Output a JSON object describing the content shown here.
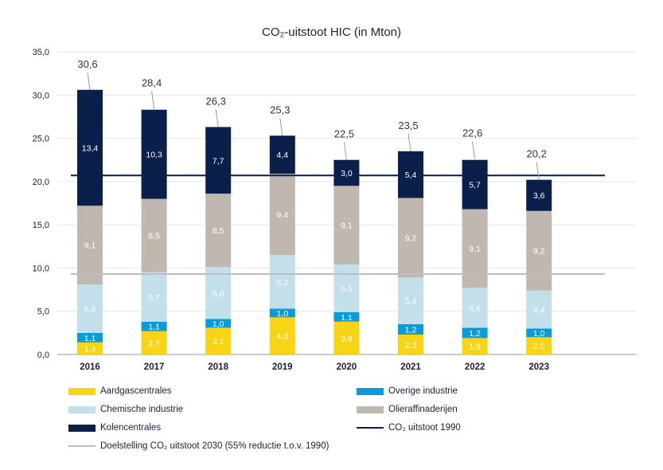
{
  "title": "CO₂-uitstoot HIC (in Mton)",
  "chart_data": {
    "type": "bar",
    "stacked": true,
    "title": "CO₂-uitstoot HIC (in Mton)",
    "categories": [
      "2016",
      "2017",
      "2018",
      "2019",
      "2020",
      "2021",
      "2022",
      "2023"
    ],
    "ylim": [
      0,
      35
    ],
    "yticks": [
      "0,0",
      "5,0",
      "10,0",
      "15,0",
      "20,0",
      "25,0",
      "30,0",
      "35,0"
    ],
    "grid": true,
    "legend_position": "bottom",
    "series": [
      {
        "name": "Aardgascentrales",
        "color": "#f7d416",
        "label_color": "#ffffff",
        "values": [
          1.4,
          2.7,
          3.1,
          4.3,
          3.8,
          2.3,
          1.9,
          2.0
        ],
        "labels": [
          "1,4",
          "2,7",
          "3,1",
          "4,3",
          "3,8",
          "2,3",
          "1,9",
          "2,0"
        ]
      },
      {
        "name": "Overige industrie",
        "color": "#0b9bd8",
        "label_color": "#ffffff",
        "values": [
          1.1,
          1.1,
          1.0,
          1.0,
          1.1,
          1.2,
          1.2,
          1.0
        ],
        "labels": [
          "1,1",
          "1,1",
          "1,0",
          "1,0",
          "1,1",
          "1,2",
          "1,2",
          "1,0"
        ]
      },
      {
        "name": "Chemische industrie",
        "color": "#c3dfea",
        "label_color": "#ffffff",
        "values": [
          5.6,
          5.7,
          6.0,
          6.2,
          5.5,
          5.4,
          4.6,
          4.4
        ],
        "labels": [
          "5,6",
          "5,7",
          "6,0",
          "6,2",
          "5,5",
          "5,4",
          "4,6",
          "4,4"
        ]
      },
      {
        "name": "Olieraffinaderijen",
        "color": "#c0b7b0",
        "label_color": "#ffffff",
        "values": [
          9.1,
          8.5,
          8.5,
          9.4,
          9.1,
          9.2,
          9.1,
          9.2
        ],
        "labels": [
          "9,1",
          "8,5",
          "8,5",
          "9,4",
          "9,1",
          "9,2",
          "9,1",
          "9,2"
        ]
      },
      {
        "name": "Kolencentrales",
        "color": "#0b1f4b",
        "label_color": "#ffffff",
        "values": [
          13.4,
          10.3,
          7.7,
          4.4,
          3.0,
          5.4,
          5.7,
          3.6
        ],
        "labels": [
          "13,4",
          "10,3",
          "7,7",
          "4,4",
          "3,0",
          "5,4",
          "5,7",
          "3,6"
        ]
      }
    ],
    "totals": [
      30.6,
      28.4,
      26.3,
      25.3,
      22.5,
      23.5,
      22.6,
      20.2
    ],
    "total_labels": [
      "30,6",
      "28,4",
      "26,3",
      "25,3",
      "22,5",
      "23,5",
      "22,6",
      "20,2"
    ],
    "reference_lines": [
      {
        "name": "CO₂ uitstoot 1990",
        "value": 20.7,
        "color": "#0b1f4b"
      },
      {
        "name": "Doelstelling CO₂ uitstoot 2030 (55% reductie t.o.v. 1990)",
        "value": 9.3,
        "color": "#bdbdbd"
      }
    ]
  },
  "legend": [
    {
      "label": "Aardgascentrales",
      "kind": "box",
      "color": "#f7d416"
    },
    {
      "label": "Overige industrie",
      "kind": "box",
      "color": "#0b9bd8"
    },
    {
      "label": "Chemische industrie",
      "kind": "box",
      "color": "#c3dfea"
    },
    {
      "label": "Olieraffinaderijen",
      "kind": "box",
      "color": "#c0b7b0"
    },
    {
      "label": "Kolencentrales",
      "kind": "box",
      "color": "#0b1f4b"
    },
    {
      "label": "CO₂ uitstoot 1990",
      "kind": "line",
      "color": "#0b1f4b"
    },
    {
      "label": "Doelstelling CO₂ uitstoot 2030 (55% reductie t.o.v. 1990)",
      "kind": "line",
      "color": "#bdbdbd"
    }
  ]
}
